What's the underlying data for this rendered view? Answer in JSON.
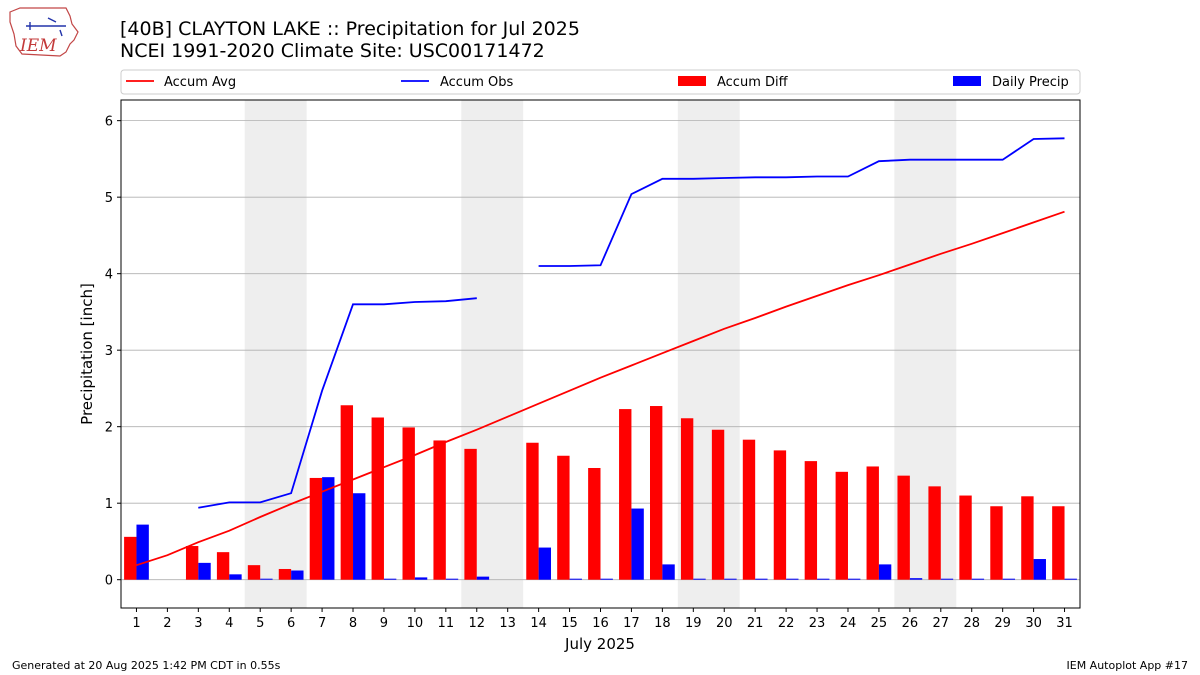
{
  "title_line1": "[40B] CLAYTON LAKE :: Precipitation for Jul 2025",
  "title_line2": "NCEI 1991-2020 Climate Site: USC00171472",
  "logo_text": "IEM",
  "footer_left": "Generated at 20 Aug 2025 1:42 PM CDT in 0.55s",
  "footer_right": "IEM Autoplot App #17",
  "colors": {
    "accum_avg": "#ff0000",
    "accum_obs": "#0000ff",
    "accum_diff": "#ff0000",
    "daily_precip": "#0000ff",
    "weekend_shade": "#eeeeee",
    "grid": "#b0b0b0"
  },
  "chart_data": {
    "type": "bar",
    "xlabel": "July 2025",
    "ylabel": "Precipitation [inch]",
    "xlim": [
      0.5,
      31.5
    ],
    "ylim": [
      -0.37,
      6.27
    ],
    "yticks": [
      0,
      1,
      2,
      3,
      4,
      5,
      6
    ],
    "grid": "y",
    "legend_placement": "top",
    "days": [
      1,
      2,
      3,
      4,
      5,
      6,
      7,
      8,
      9,
      10,
      11,
      12,
      13,
      14,
      15,
      16,
      17,
      18,
      19,
      20,
      21,
      22,
      23,
      24,
      25,
      26,
      27,
      28,
      29,
      30,
      31
    ],
    "shaded_days": [
      [
        4.5,
        6.5
      ],
      [
        11.5,
        13.5
      ],
      [
        18.5,
        20.5
      ],
      [
        25.5,
        27.5
      ]
    ],
    "series": [
      {
        "name": "Accum Avg",
        "kind": "line",
        "values": [
          0.19,
          0.32,
          0.49,
          0.64,
          0.82,
          0.99,
          1.15,
          1.31,
          1.47,
          1.63,
          1.8,
          1.96,
          2.13,
          2.3,
          2.47,
          2.64,
          2.8,
          2.96,
          3.12,
          3.28,
          3.42,
          3.57,
          3.71,
          3.85,
          3.98,
          4.12,
          4.26,
          4.39,
          4.53,
          4.67,
          4.81
        ]
      },
      {
        "name": "Accum Obs",
        "kind": "line",
        "values": [
          null,
          null,
          0.94,
          1.01,
          1.01,
          1.13,
          2.47,
          3.6,
          3.6,
          3.63,
          3.64,
          3.68,
          null,
          4.1,
          4.1,
          4.11,
          5.04,
          5.24,
          5.24,
          5.25,
          5.26,
          5.26,
          5.27,
          5.27,
          5.47,
          5.49,
          5.49,
          5.49,
          5.49,
          5.76,
          5.77
        ]
      },
      {
        "name": "Accum Diff",
        "kind": "bar",
        "values": [
          0.56,
          null,
          0.44,
          0.36,
          0.19,
          0.14,
          1.33,
          2.28,
          2.12,
          1.99,
          1.82,
          1.71,
          null,
          1.79,
          1.62,
          1.46,
          2.23,
          2.27,
          2.11,
          1.96,
          1.83,
          1.69,
          1.55,
          1.41,
          1.48,
          1.36,
          1.22,
          1.1,
          0.96,
          1.09,
          0.96
        ]
      },
      {
        "name": "Daily Precip",
        "kind": "bar",
        "values": [
          0.72,
          null,
          0.22,
          0.07,
          0.0,
          0.12,
          1.34,
          1.13,
          0.0,
          0.03,
          0.01,
          0.04,
          null,
          0.42,
          0.0,
          0.01,
          0.93,
          0.2,
          0.0,
          0.01,
          0.01,
          0.0,
          0.01,
          0.0,
          0.2,
          0.02,
          0.0,
          0.0,
          0.0,
          0.27,
          0.01
        ]
      }
    ]
  }
}
